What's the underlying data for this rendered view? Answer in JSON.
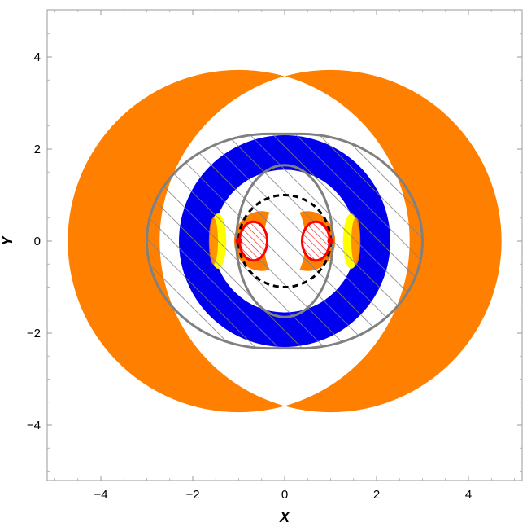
{
  "chart_data": {
    "type": "region-plot",
    "xlabel": "X",
    "ylabel": "Y",
    "xlim": [
      -5.2,
      5.2
    ],
    "ylim": [
      -5.2,
      5.2
    ],
    "x_ticks": [
      -4,
      -2,
      0,
      2,
      4
    ],
    "y_ticks": [
      -4,
      -2,
      0,
      2,
      4
    ],
    "x_tick_labels": [
      "−4",
      "−2",
      "0",
      "2",
      "4"
    ],
    "y_tick_labels": [
      "−4",
      "−2",
      "0",
      "2",
      "4"
    ],
    "grid": false,
    "legend": "none",
    "colors": {
      "orange": "#ff8000",
      "blue": "#0000ee",
      "yellow": "#ffff00",
      "red": "#ff0000",
      "gray": "#808080",
      "black": "#000000",
      "frame": "#999999"
    },
    "regions": {
      "large_orange_disks": {
        "centers": [
          [
            -1.0,
            0
          ],
          [
            1.0,
            0
          ]
        ],
        "radius": 3.72
      },
      "blue_annulus": {
        "center": [
          0,
          0
        ],
        "inner_radius": 1.55,
        "outer_radius": 2.3
      },
      "hatched_stadium": {
        "x_half_width": 3.0,
        "y_half_height": 2.33,
        "flat_half_length": 0.35
      },
      "inner_ellipse": {
        "center": [
          0,
          0
        ],
        "rx": 1.05,
        "ry": 1.65
      },
      "dashed_circle": {
        "center": [
          0,
          0
        ],
        "radius": 1.0
      },
      "inner_orange_lobes": {
        "centers": [
          [
            -0.5,
            0
          ],
          [
            0.5,
            0
          ]
        ],
        "rx": 0.6,
        "ry": 0.65
      },
      "yellow_crescents": {
        "centers": [
          [
            -1.45,
            0
          ],
          [
            1.45,
            0
          ]
        ],
        "rx": 0.18,
        "ry": 0.6
      },
      "red_hatched_ellipses": {
        "centers": [
          [
            -0.68,
            0
          ],
          [
            0.68,
            0
          ]
        ],
        "rx": 0.3,
        "ry": 0.42
      },
      "red_points": [
        [
          -1.0,
          0
        ],
        [
          1.0,
          0
        ]
      ]
    }
  }
}
